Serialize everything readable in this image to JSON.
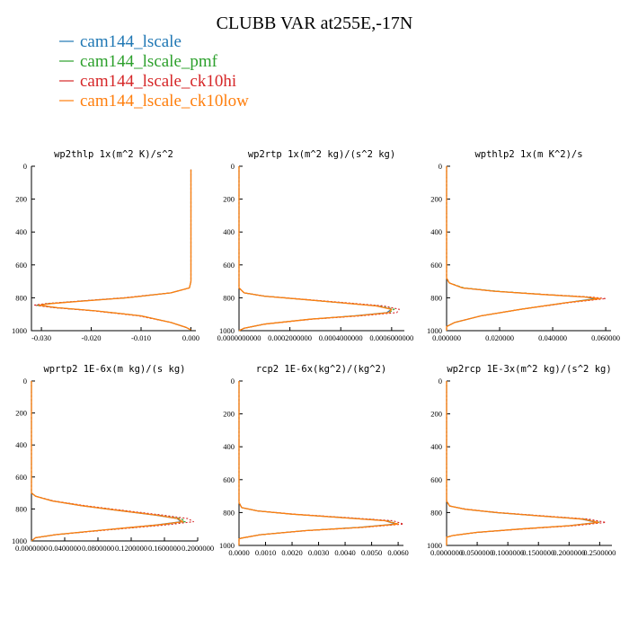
{
  "title": "CLUBB VAR at255E,-17N",
  "colors": {
    "cam144_lscale": "#1f77b4",
    "cam144_lscale_pmf": "#2ca02c",
    "cam144_lscale_ck10hi": "#d62728",
    "cam144_lscale_ck10low": "#ff7f0e"
  },
  "legend": [
    {
      "label": "cam144_lscale",
      "color": "#1f77b4"
    },
    {
      "label": "cam144_lscale_pmf",
      "color": "#2ca02c"
    },
    {
      "label": "cam144_lscale_ck10hi",
      "color": "#d62728"
    },
    {
      "label": "cam144_lscale_ck10low",
      "color": "#ff7f0e"
    }
  ],
  "chart_data": [
    {
      "type": "line",
      "title": "wp2thlp  1x(m^2 K)/s^2",
      "xlabel": "",
      "ylabel": "",
      "xlim": [
        -0.032,
        0.001
      ],
      "ylim": [
        1000,
        0
      ],
      "x_ticks": [
        -0.03,
        -0.02,
        -0.01,
        0.0
      ],
      "x_tick_labels": [
        "-0.030",
        "-0.020",
        "-0.010",
        "0.000"
      ],
      "y_ticks": [
        0,
        200,
        400,
        600,
        800,
        1000
      ],
      "y_tick_labels": [
        "0",
        "200",
        "400",
        "600",
        "800",
        "1000"
      ],
      "series": [
        {
          "name": "cam144_lscale",
          "y": [
            20,
            700,
            740,
            770,
            800,
            820,
            835,
            845,
            860,
            880,
            910,
            950,
            980,
            995
          ],
          "x": [
            0,
            0,
            -0.0003,
            -0.004,
            -0.013,
            -0.022,
            -0.028,
            -0.0305,
            -0.027,
            -0.019,
            -0.01,
            -0.004,
            -0.001,
            0
          ]
        },
        {
          "name": "cam144_lscale_pmf",
          "y": [
            20,
            700,
            740,
            770,
            800,
            820,
            835,
            845,
            860,
            880,
            910,
            950,
            980,
            995
          ],
          "x": [
            0,
            0,
            -0.0003,
            -0.004,
            -0.013,
            -0.022,
            -0.0285,
            -0.031,
            -0.027,
            -0.019,
            -0.01,
            -0.004,
            -0.001,
            0
          ]
        },
        {
          "name": "cam144_lscale_ck10hi",
          "y": [
            20,
            700,
            740,
            770,
            800,
            820,
            835,
            845,
            860,
            880,
            910,
            950,
            980,
            995
          ],
          "x": [
            0,
            0,
            -0.0003,
            -0.004,
            -0.0135,
            -0.0225,
            -0.029,
            -0.0315,
            -0.0275,
            -0.0195,
            -0.0105,
            -0.004,
            -0.001,
            0
          ]
        },
        {
          "name": "cam144_lscale_ck10low",
          "y": [
            20,
            700,
            740,
            770,
            800,
            820,
            835,
            845,
            860,
            880,
            910,
            950,
            980,
            995
          ],
          "x": [
            0,
            0,
            -0.0003,
            -0.004,
            -0.0128,
            -0.0218,
            -0.028,
            -0.0305,
            -0.0268,
            -0.019,
            -0.01,
            -0.004,
            -0.001,
            0
          ]
        }
      ]
    },
    {
      "type": "line",
      "title": "wp2rtp  1x(m^2 kg)/(s^2 kg)",
      "xlabel": "",
      "ylabel": "",
      "xlim": [
        0,
        0.00065
      ],
      "ylim": [
        1000,
        0
      ],
      "x_ticks": [
        0,
        0.0002,
        0.0004,
        0.0006
      ],
      "x_tick_labels": [
        "0.0000000000",
        "0.0002000000",
        "0.0004000000",
        "0.0006000000"
      ],
      "y_ticks": [
        0,
        200,
        400,
        600,
        800,
        1000
      ],
      "y_tick_labels": [
        "0",
        "200",
        "400",
        "600",
        "800",
        "1000"
      ],
      "series": [
        {
          "name": "cam144_lscale",
          "y": [
            0,
            740,
            770,
            790,
            810,
            830,
            850,
            870,
            890,
            910,
            930,
            960,
            985,
            1000
          ],
          "x": [
            0,
            0,
            2e-05,
            0.0001,
            0.00025,
            0.0004,
            0.00054,
            0.0006,
            0.00058,
            0.00045,
            0.00028,
            0.0001,
            2e-05,
            0
          ]
        },
        {
          "name": "cam144_lscale_pmf",
          "y": [
            0,
            740,
            770,
            790,
            810,
            830,
            850,
            870,
            890,
            910,
            930,
            960,
            985,
            1000
          ],
          "x": [
            0,
            0,
            2e-05,
            0.0001,
            0.00025,
            0.0004,
            0.00055,
            0.00061,
            0.00059,
            0.00046,
            0.00028,
            0.0001,
            2e-05,
            0
          ]
        },
        {
          "name": "cam144_lscale_ck10hi",
          "y": [
            0,
            740,
            770,
            790,
            810,
            830,
            850,
            870,
            890,
            910,
            930,
            960,
            985,
            1000
          ],
          "x": [
            0,
            0,
            2e-05,
            0.0001,
            0.00026,
            0.00042,
            0.00057,
            0.00063,
            0.00062,
            0.00048,
            0.00029,
            0.0001,
            2e-05,
            0
          ]
        },
        {
          "name": "cam144_lscale_ck10low",
          "y": [
            0,
            740,
            770,
            790,
            810,
            830,
            850,
            870,
            890,
            910,
            930,
            960,
            985,
            1000
          ],
          "x": [
            0,
            0,
            2e-05,
            0.0001,
            0.00025,
            0.0004,
            0.00054,
            0.0006,
            0.00059,
            0.00046,
            0.00028,
            0.0001,
            2e-05,
            0
          ]
        }
      ]
    },
    {
      "type": "line",
      "title": "wpthlp2  1x(m K^2)/s",
      "xlabel": "",
      "ylabel": "",
      "xlim": [
        0,
        0.062
      ],
      "ylim": [
        1000,
        0
      ],
      "x_ticks": [
        0,
        0.02,
        0.04,
        0.06
      ],
      "x_tick_labels": [
        "0.000000",
        "0.020000",
        "0.040000",
        "0.060000"
      ],
      "y_ticks": [
        0,
        200,
        400,
        600,
        800,
        1000
      ],
      "y_tick_labels": [
        "0",
        "200",
        "400",
        "600",
        "800",
        "1000"
      ],
      "series": [
        {
          "name": "cam144_lscale",
          "y": [
            0,
            680,
            710,
            740,
            760,
            780,
            795,
            805,
            830,
            870,
            910,
            950,
            975,
            1000
          ],
          "x": [
            0,
            0,
            0.001,
            0.006,
            0.018,
            0.036,
            0.052,
            0.056,
            0.045,
            0.028,
            0.013,
            0.003,
            0,
            0
          ]
        },
        {
          "name": "cam144_lscale_pmf",
          "y": [
            0,
            680,
            710,
            740,
            760,
            780,
            795,
            805,
            830,
            870,
            910,
            950,
            975,
            1000
          ],
          "x": [
            0,
            0,
            0.001,
            0.0065,
            0.019,
            0.037,
            0.053,
            0.057,
            0.045,
            0.028,
            0.013,
            0.003,
            0,
            0
          ]
        },
        {
          "name": "cam144_lscale_ck10hi",
          "y": [
            0,
            680,
            710,
            740,
            760,
            780,
            795,
            805,
            830,
            870,
            910,
            950,
            975,
            1000
          ],
          "x": [
            0,
            0,
            0.001,
            0.006,
            0.018,
            0.037,
            0.054,
            0.06,
            0.046,
            0.028,
            0.013,
            0.003,
            0,
            0
          ]
        },
        {
          "name": "cam144_lscale_ck10low",
          "y": [
            0,
            680,
            710,
            740,
            760,
            780,
            795,
            805,
            830,
            870,
            910,
            950,
            975,
            1000
          ],
          "x": [
            0,
            0,
            0.001,
            0.006,
            0.018,
            0.036,
            0.052,
            0.058,
            0.045,
            0.028,
            0.013,
            0.003,
            0,
            0
          ]
        }
      ]
    },
    {
      "type": "line",
      "title": "wprtp2  1E-6x(m kg)/(s kg)",
      "xlabel": "",
      "ylabel": "",
      "xlim": [
        0,
        0.2
      ],
      "ylim": [
        1000,
        0
      ],
      "x_ticks": [
        0,
        0.04,
        0.08,
        0.12,
        0.16,
        0.2
      ],
      "x_tick_labels": [
        "0.0000000",
        "0.0400000",
        "0.0800000",
        "0.1200000",
        "0.1600000",
        "0.2000000"
      ],
      "y_ticks": [
        0,
        200,
        400,
        600,
        800,
        1000
      ],
      "y_tick_labels": [
        "0",
        "200",
        "400",
        "600",
        "800",
        "1000"
      ],
      "series": [
        {
          "name": "cam144_lscale",
          "y": [
            0,
            700,
            720,
            750,
            780,
            810,
            840,
            860,
            880,
            900,
            930,
            960,
            980,
            1000
          ],
          "x": [
            0,
            0,
            0.005,
            0.025,
            0.06,
            0.105,
            0.15,
            0.175,
            0.18,
            0.15,
            0.09,
            0.03,
            0.005,
            0
          ]
        },
        {
          "name": "cam144_lscale_pmf",
          "y": [
            0,
            700,
            720,
            750,
            780,
            810,
            840,
            860,
            880,
            900,
            930,
            960,
            980,
            1000
          ],
          "x": [
            0,
            0,
            0.005,
            0.026,
            0.062,
            0.108,
            0.154,
            0.18,
            0.185,
            0.155,
            0.092,
            0.03,
            0.005,
            0
          ]
        },
        {
          "name": "cam144_lscale_ck10hi",
          "y": [
            0,
            700,
            720,
            750,
            780,
            810,
            840,
            860,
            880,
            900,
            930,
            960,
            980,
            1000
          ],
          "x": [
            0,
            0,
            0.005,
            0.027,
            0.065,
            0.112,
            0.16,
            0.188,
            0.195,
            0.162,
            0.095,
            0.031,
            0.005,
            0
          ]
        },
        {
          "name": "cam144_lscale_ck10low",
          "y": [
            0,
            700,
            720,
            750,
            780,
            810,
            840,
            860,
            880,
            900,
            930,
            960,
            980,
            1000
          ],
          "x": [
            0,
            0,
            0.005,
            0.025,
            0.061,
            0.106,
            0.152,
            0.176,
            0.182,
            0.152,
            0.09,
            0.03,
            0.005,
            0
          ]
        }
      ]
    },
    {
      "type": "line",
      "title": "rcp2  1E-6x(kg^2)/(kg^2)",
      "xlabel": "",
      "ylabel": "",
      "xlim": [
        0,
        0.0062
      ],
      "ylim": [
        1000,
        0
      ],
      "x_ticks": [
        0,
        0.001,
        0.002,
        0.003,
        0.004,
        0.005,
        0.006
      ],
      "x_tick_labels": [
        "0.0000",
        "0.0010",
        "0.0020",
        "0.0030",
        "0.0040",
        "0.0050",
        "0.0060"
      ],
      "y_ticks": [
        0,
        200,
        400,
        600,
        800,
        1000
      ],
      "y_tick_labels": [
        "0",
        "200",
        "400",
        "600",
        "800",
        "1000"
      ],
      "series": [
        {
          "name": "cam144_lscale",
          "y": [
            0,
            740,
            770,
            790,
            810,
            830,
            850,
            870,
            890,
            910,
            935,
            955,
            960,
            1000
          ],
          "x": [
            0,
            0,
            0.0001,
            0.0007,
            0.002,
            0.0038,
            0.0055,
            0.0059,
            0.0045,
            0.0025,
            0.0008,
            0.0001,
            0,
            0
          ]
        },
        {
          "name": "cam144_lscale_pmf",
          "y": [
            0,
            740,
            770,
            790,
            810,
            830,
            850,
            870,
            890,
            910,
            935,
            955,
            960,
            1000
          ],
          "x": [
            0,
            0,
            0.0001,
            0.0007,
            0.002,
            0.0039,
            0.0056,
            0.006,
            0.0046,
            0.0025,
            0.0008,
            0.0001,
            0,
            0
          ]
        },
        {
          "name": "cam144_lscale_ck10hi",
          "y": [
            0,
            740,
            770,
            790,
            810,
            830,
            850,
            870,
            890,
            910,
            935,
            955,
            960,
            1000
          ],
          "x": [
            0,
            0,
            0.0001,
            0.0007,
            0.0021,
            0.004,
            0.0058,
            0.0062,
            0.0047,
            0.0026,
            0.0008,
            0.0001,
            0,
            0
          ]
        },
        {
          "name": "cam144_lscale_ck10low",
          "y": [
            0,
            740,
            770,
            790,
            810,
            830,
            850,
            870,
            890,
            910,
            935,
            955,
            960,
            1000
          ],
          "x": [
            0,
            0,
            0.0001,
            0.0007,
            0.002,
            0.0038,
            0.0055,
            0.006,
            0.0046,
            0.0025,
            0.0008,
            0.0001,
            0,
            0
          ]
        }
      ]
    },
    {
      "type": "line",
      "title": "wp2rcp  1E-3x(m^2 kg)/(s^2 kg)",
      "xlabel": "",
      "ylabel": "",
      "xlim": [
        0,
        0.27
      ],
      "ylim": [
        1000,
        0
      ],
      "x_ticks": [
        0,
        0.05,
        0.1,
        0.15,
        0.2,
        0.25
      ],
      "x_tick_labels": [
        "0.0000000",
        "0.0500000",
        "0.1000000",
        "0.1500000",
        "0.2000000",
        "0.2500000"
      ],
      "y_ticks": [
        0,
        200,
        400,
        600,
        800,
        1000
      ],
      "y_tick_labels": [
        "0",
        "200",
        "400",
        "600",
        "800",
        "1000"
      ],
      "series": [
        {
          "name": "cam144_lscale",
          "y": [
            0,
            730,
            760,
            780,
            800,
            820,
            840,
            860,
            880,
            900,
            920,
            940,
            950,
            1000
          ],
          "x": [
            0,
            0,
            0.005,
            0.03,
            0.08,
            0.15,
            0.22,
            0.245,
            0.2,
            0.12,
            0.05,
            0.01,
            0,
            0
          ]
        },
        {
          "name": "cam144_lscale_pmf",
          "y": [
            0,
            730,
            760,
            780,
            800,
            820,
            840,
            860,
            880,
            900,
            920,
            940,
            950,
            1000
          ],
          "x": [
            0,
            0,
            0.005,
            0.031,
            0.082,
            0.153,
            0.225,
            0.25,
            0.203,
            0.122,
            0.05,
            0.01,
            0,
            0
          ]
        },
        {
          "name": "cam144_lscale_ck10hi",
          "y": [
            0,
            730,
            760,
            780,
            800,
            820,
            840,
            860,
            880,
            900,
            920,
            940,
            950,
            1000
          ],
          "x": [
            0,
            0,
            0.005,
            0.032,
            0.085,
            0.158,
            0.232,
            0.26,
            0.21,
            0.126,
            0.052,
            0.01,
            0,
            0
          ]
        },
        {
          "name": "cam144_lscale_ck10low",
          "y": [
            0,
            730,
            760,
            780,
            800,
            820,
            840,
            860,
            880,
            900,
            920,
            940,
            950,
            1000
          ],
          "x": [
            0,
            0,
            0.005,
            0.03,
            0.081,
            0.151,
            0.222,
            0.248,
            0.201,
            0.121,
            0.05,
            0.01,
            0,
            0
          ]
        }
      ]
    }
  ]
}
